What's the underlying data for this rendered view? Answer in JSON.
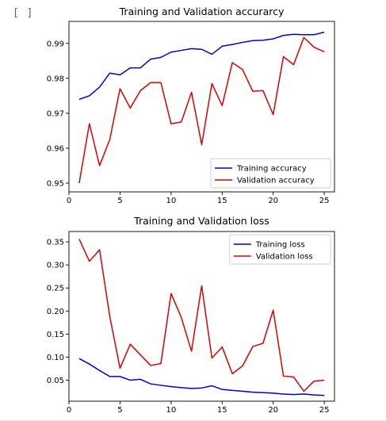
{
  "notebook": {
    "cell_indicator": "[ ]"
  },
  "chart_data": [
    {
      "type": "line",
      "title": "Training and Validation accurarcy",
      "xlabel": "",
      "ylabel": "",
      "xlim": [
        0,
        26
      ],
      "ylim": [
        0.9475,
        0.9963
      ],
      "x_ticks": [
        0,
        5,
        10,
        15,
        20,
        25
      ],
      "y_ticks": [
        0.95,
        0.96,
        0.97,
        0.98,
        0.99
      ],
      "x_tick_labels": [
        "0",
        "5",
        "10",
        "15",
        "20",
        "25"
      ],
      "y_tick_labels": [
        "0.95",
        "0.96",
        "0.97",
        "0.98",
        "0.99"
      ],
      "legend_position": "lower-right",
      "x": [
        1,
        2,
        3,
        4,
        5,
        6,
        7,
        8,
        9,
        10,
        11,
        12,
        13,
        14,
        15,
        16,
        17,
        18,
        19,
        20,
        21,
        22,
        23,
        24,
        25
      ],
      "series": [
        {
          "name": "Training accuracy",
          "color": "#0000cc",
          "values": [
            0.974,
            0.975,
            0.9775,
            0.9815,
            0.981,
            0.983,
            0.983,
            0.9855,
            0.986,
            0.9875,
            0.988,
            0.9885,
            0.9883,
            0.9869,
            0.9892,
            0.9897,
            0.9903,
            0.9908,
            0.9909,
            0.9913,
            0.9923,
            0.9926,
            0.9925,
            0.9925,
            0.9932
          ]
        },
        {
          "name": "Validation accuracy",
          "color": "#dd0000",
          "values": [
            0.95,
            0.967,
            0.955,
            0.9625,
            0.977,
            0.9715,
            0.9765,
            0.9788,
            0.9788,
            0.967,
            0.9675,
            0.976,
            0.961,
            0.9785,
            0.9722,
            0.9845,
            0.9825,
            0.9763,
            0.9765,
            0.9696,
            0.9862,
            0.9839,
            0.9917,
            0.9889,
            0.9876
          ]
        }
      ]
    },
    {
      "type": "line",
      "title": "Training and Validation loss",
      "xlabel": "",
      "ylabel": "",
      "xlim": [
        0,
        26
      ],
      "ylim": [
        0.0045,
        0.3725
      ],
      "x_ticks": [
        0,
        5,
        10,
        15,
        20,
        25
      ],
      "y_ticks": [
        0.05,
        0.1,
        0.15,
        0.2,
        0.25,
        0.3,
        0.35
      ],
      "x_tick_labels": [
        "0",
        "5",
        "10",
        "15",
        "20",
        "25"
      ],
      "y_tick_labels": [
        "0.05",
        "0.10",
        "0.15",
        "0.20",
        "0.25",
        "0.30",
        "0.35"
      ],
      "legend_position": "upper-right",
      "x": [
        1,
        2,
        3,
        4,
        5,
        6,
        7,
        8,
        9,
        10,
        11,
        12,
        13,
        14,
        15,
        16,
        17,
        18,
        19,
        20,
        21,
        22,
        23,
        24,
        25
      ],
      "series": [
        {
          "name": "Training loss",
          "color": "#0000cc",
          "values": [
            0.097,
            0.085,
            0.071,
            0.058,
            0.058,
            0.05,
            0.052,
            0.042,
            0.039,
            0.036,
            0.034,
            0.032,
            0.033,
            0.038,
            0.03,
            0.028,
            0.026,
            0.024,
            0.023,
            0.022,
            0.02,
            0.019,
            0.02,
            0.018,
            0.017
          ]
        },
        {
          "name": "Validation loss",
          "color": "#dd0000",
          "values": [
            0.356,
            0.308,
            0.333,
            0.188,
            0.076,
            0.128,
            0.105,
            0.082,
            0.086,
            0.238,
            0.186,
            0.113,
            0.255,
            0.098,
            0.122,
            0.064,
            0.081,
            0.123,
            0.13,
            0.202,
            0.059,
            0.057,
            0.026,
            0.048,
            0.05
          ]
        }
      ]
    }
  ]
}
